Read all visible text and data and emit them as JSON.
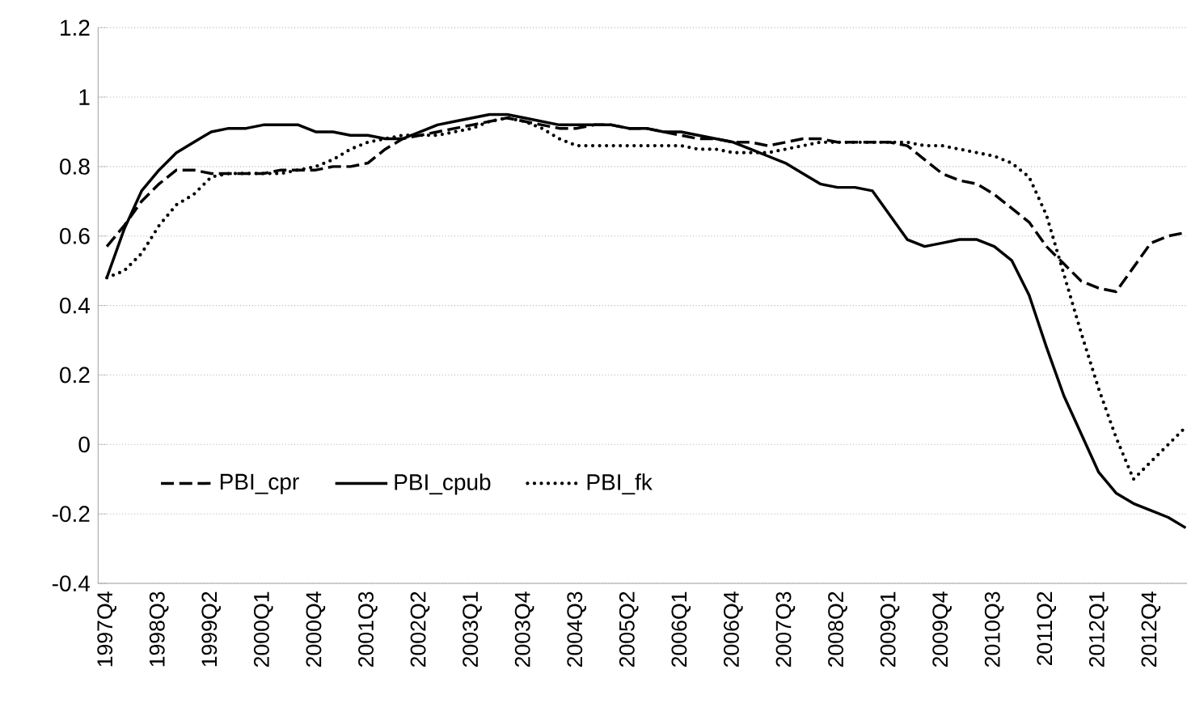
{
  "chart_data": {
    "type": "line",
    "categories": [
      "1997Q4",
      null,
      null,
      "1998Q3",
      null,
      null,
      "1999Q2",
      null,
      null,
      "2000Q1",
      null,
      null,
      "2000Q4",
      null,
      null,
      "2001Q3",
      null,
      null,
      "2002Q2",
      null,
      null,
      "2003Q1",
      null,
      null,
      "2003Q4",
      null,
      null,
      "2004Q3",
      null,
      null,
      "2005Q2",
      null,
      null,
      "2006Q1",
      null,
      null,
      "2006Q4",
      null,
      null,
      "2007Q3",
      null,
      null,
      "2008Q2",
      null,
      null,
      "2009Q1",
      null,
      null,
      "2009Q4",
      null,
      null,
      "2010Q3",
      null,
      null,
      "2011Q2",
      null,
      null,
      "2012Q1",
      null,
      null,
      "2012Q4",
      null,
      null
    ],
    "series": [
      {
        "name": "PBI_cpr",
        "color": "#000000",
        "line_style": "dashed",
        "values": [
          0.57,
          0.63,
          0.7,
          0.75,
          0.79,
          0.79,
          0.78,
          0.78,
          0.78,
          0.78,
          0.79,
          0.79,
          0.79,
          0.8,
          0.8,
          0.81,
          0.85,
          0.88,
          0.89,
          0.9,
          0.91,
          0.92,
          0.93,
          0.94,
          0.93,
          0.92,
          0.91,
          0.91,
          0.92,
          0.92,
          0.91,
          0.91,
          0.9,
          0.89,
          0.88,
          0.88,
          0.87,
          0.87,
          0.86,
          0.87,
          0.88,
          0.88,
          0.87,
          0.87,
          0.87,
          0.87,
          0.86,
          0.82,
          0.78,
          0.76,
          0.75,
          0.72,
          0.68,
          0.64,
          0.57,
          0.52,
          0.47,
          0.45,
          0.44,
          0.51,
          0.58,
          0.6,
          0.61
        ]
      },
      {
        "name": "PBI_cpub",
        "color": "#000000",
        "line_style": "solid",
        "values": [
          0.48,
          0.62,
          0.73,
          0.79,
          0.84,
          0.87,
          0.9,
          0.91,
          0.91,
          0.92,
          0.92,
          0.92,
          0.9,
          0.9,
          0.89,
          0.89,
          0.88,
          0.88,
          0.9,
          0.92,
          0.93,
          0.94,
          0.95,
          0.95,
          0.94,
          0.93,
          0.92,
          0.92,
          0.92,
          0.92,
          0.91,
          0.91,
          0.9,
          0.9,
          0.89,
          0.88,
          0.87,
          0.85,
          0.83,
          0.81,
          0.78,
          0.75,
          0.74,
          0.74,
          0.73,
          0.66,
          0.59,
          0.57,
          0.58,
          0.59,
          0.59,
          0.57,
          0.53,
          0.43,
          0.28,
          0.14,
          0.03,
          -0.08,
          -0.14,
          -0.17,
          -0.19,
          -0.21,
          -0.24
        ]
      },
      {
        "name": "PBI_fk",
        "color": "#000000",
        "line_style": "dotted",
        "values": [
          0.48,
          0.5,
          0.55,
          0.63,
          0.69,
          0.72,
          0.77,
          0.78,
          0.78,
          0.78,
          0.78,
          0.79,
          0.8,
          0.82,
          0.85,
          0.87,
          0.88,
          0.89,
          0.89,
          0.89,
          0.9,
          0.91,
          0.93,
          0.94,
          0.93,
          0.91,
          0.88,
          0.86,
          0.86,
          0.86,
          0.86,
          0.86,
          0.86,
          0.86,
          0.85,
          0.85,
          0.84,
          0.84,
          0.84,
          0.85,
          0.86,
          0.87,
          0.87,
          0.87,
          0.87,
          0.87,
          0.87,
          0.86,
          0.86,
          0.85,
          0.84,
          0.83,
          0.81,
          0.77,
          0.66,
          0.49,
          0.32,
          0.16,
          0.02,
          -0.1,
          -0.05,
          0.0,
          0.05
        ]
      }
    ],
    "ylim": [
      -0.4,
      1.2
    ],
    "yticks": [
      -0.4,
      -0.2,
      0,
      0.2,
      0.4,
      0.6,
      0.8,
      1,
      1.2
    ],
    "grid": "y",
    "legend": "bottom left"
  }
}
